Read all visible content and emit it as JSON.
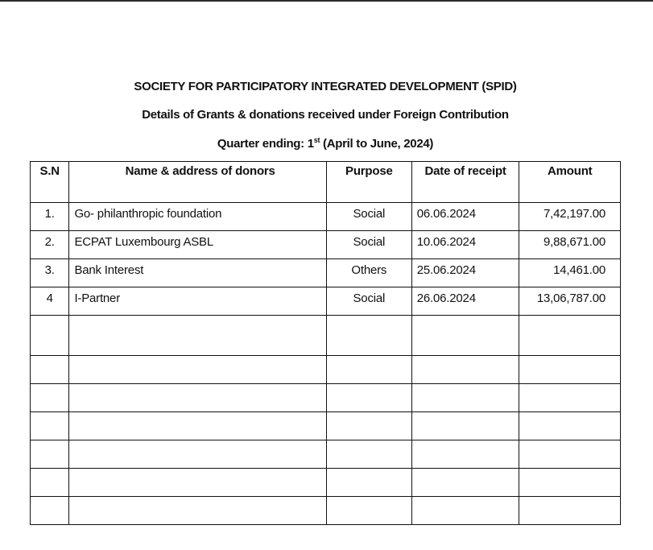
{
  "header": {
    "org": "SOCIETY FOR PARTICIPATORY INTEGRATED DEVELOPMENT (SPID)",
    "subtitle": "Details of Grants & donations received under Foreign Contribution",
    "quarter_prefix": "Quarter ending: 1",
    "quarter_sup": "st",
    "quarter_suffix": " (April to June, 2024)"
  },
  "table": {
    "columns": [
      "S.N",
      "Name & address of donors",
      "Purpose",
      "Date of receipt",
      "Amount"
    ],
    "rows": [
      {
        "sn": "1.",
        "name": "Go- philanthropic foundation",
        "purpose": "Social",
        "date": "06.06.2024",
        "amount": "7,42,197.00"
      },
      {
        "sn": "2.",
        "name": "ECPAT Luxembourg ASBL",
        "purpose": "Social",
        "date": "10.06.2024",
        "amount": "9,88,671.00"
      },
      {
        "sn": "3.",
        "name": "Bank Interest",
        "purpose": "Others",
        "date": "25.06.2024",
        "amount": "14,461.00"
      },
      {
        "sn": "4",
        "name": "I-Partner",
        "purpose": "Social",
        "date": "26.06.2024",
        "amount": "13,06,787.00"
      }
    ]
  }
}
